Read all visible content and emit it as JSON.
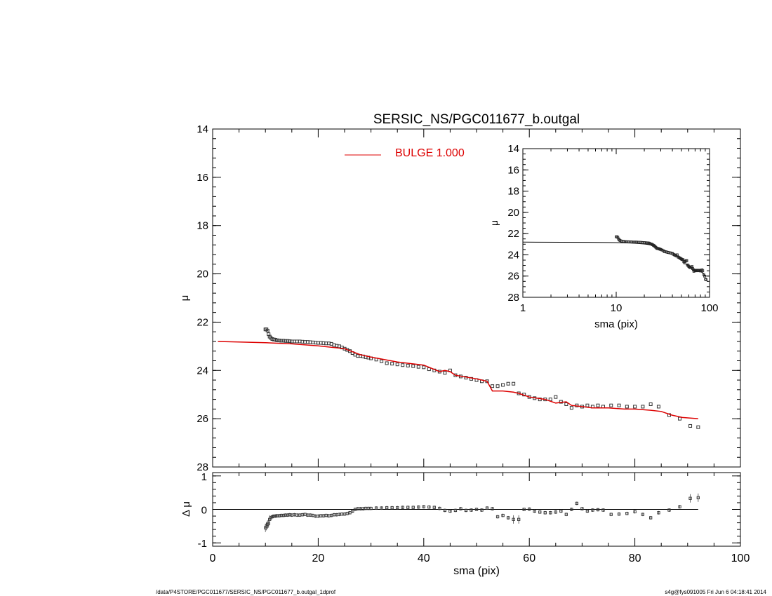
{
  "title": "SERSIC_NS/PGC011677_b.outgal",
  "footer": {
    "left": "/data/P4STORE/PGC011677/SERSIC_NS/PGC011677_b.outgal_1dprof",
    "right": "s4g@fys091005  Fri Jun  6 04:18:41 2014"
  },
  "colors": {
    "model": "#dd0000",
    "data": "#000000",
    "background": "#ffffff"
  },
  "chart_data": [
    {
      "type": "scatter",
      "panel": "main",
      "title": "SERSIC_NS/PGC011677_b.outgal",
      "xlabel": "",
      "ylabel": "μ",
      "xlim": [
        0,
        100
      ],
      "ylim": [
        28,
        14
      ],
      "y_inverted": true,
      "yticks": [
        "14",
        "16",
        "18",
        "20",
        "22",
        "24",
        "26",
        "28"
      ],
      "legend": {
        "placement": "top-center",
        "entries": [
          {
            "label": "BULGE  1.000",
            "color": "#dd0000"
          }
        ]
      },
      "model": {
        "name": "BULGE  1.000",
        "x": [
          1,
          5,
          10,
          15,
          20,
          25,
          28,
          30,
          35,
          40,
          43,
          44,
          45,
          46,
          50,
          52,
          53,
          55,
          57,
          58,
          60,
          63,
          65,
          67,
          68,
          70,
          72,
          75,
          78,
          80,
          83,
          85,
          87,
          89,
          92
        ],
        "y": [
          22.8,
          22.82,
          22.85,
          22.9,
          22.98,
          23.1,
          23.35,
          23.45,
          23.65,
          23.78,
          24.05,
          24.0,
          24.05,
          24.2,
          24.35,
          24.45,
          24.85,
          24.85,
          24.9,
          24.95,
          25.1,
          25.2,
          25.35,
          25.3,
          25.45,
          25.5,
          25.55,
          25.55,
          25.6,
          25.6,
          25.65,
          25.7,
          25.85,
          25.95,
          26.0
        ]
      },
      "points": {
        "x": [
          10,
          10.2,
          10.4,
          10.6,
          10.8,
          11,
          11.3,
          11.6,
          11.9,
          12.2,
          12.6,
          13,
          13.4,
          13.8,
          14.2,
          14.6,
          15,
          15.5,
          16,
          16.5,
          17,
          17.5,
          18,
          18.5,
          19,
          19.5,
          20,
          20.5,
          21,
          21.5,
          22,
          22.5,
          23,
          23.5,
          24,
          24.5,
          25,
          25.5,
          26,
          26.5,
          27,
          27.5,
          28,
          28.5,
          29,
          29.5,
          30,
          31,
          32,
          33,
          34,
          35,
          36,
          37,
          38,
          39,
          40,
          41,
          42,
          43,
          44,
          45,
          46,
          47,
          48,
          49,
          50,
          51,
          52,
          53,
          54,
          55,
          56,
          57,
          58,
          59,
          60,
          61,
          62,
          63,
          64,
          65,
          66,
          67,
          68,
          69,
          70,
          71,
          72,
          73,
          74,
          75.5,
          77,
          78.5,
          80,
          81.5,
          83,
          84.5,
          86.5,
          88.5,
          90.5,
          92
        ],
        "y": [
          22.3,
          22.3,
          22.35,
          22.5,
          22.6,
          22.65,
          22.7,
          22.72,
          22.73,
          22.75,
          22.76,
          22.77,
          22.77,
          22.78,
          22.78,
          22.79,
          22.8,
          22.8,
          22.8,
          22.8,
          22.81,
          22.82,
          22.82,
          22.83,
          22.84,
          22.85,
          22.86,
          22.86,
          22.87,
          22.88,
          22.88,
          22.9,
          22.95,
          22.98,
          23.0,
          23.05,
          23.1,
          23.15,
          23.2,
          23.28,
          23.35,
          23.4,
          23.4,
          23.42,
          23.45,
          23.47,
          23.5,
          23.55,
          23.62,
          23.7,
          23.72,
          23.75,
          23.78,
          23.8,
          23.82,
          23.85,
          23.87,
          23.95,
          24.0,
          24.05,
          24.1,
          24.0,
          24.2,
          24.25,
          24.3,
          24.35,
          24.4,
          24.45,
          24.45,
          24.65,
          24.65,
          24.6,
          24.55,
          24.55,
          24.95,
          25.0,
          25.1,
          25.15,
          25.2,
          25.2,
          25.2,
          25.1,
          25.3,
          25.4,
          25.55,
          25.45,
          25.5,
          25.45,
          25.5,
          25.45,
          25.5,
          25.45,
          25.45,
          25.5,
          25.5,
          25.5,
          25.4,
          25.5,
          25.85,
          26.0,
          26.3,
          26.35
        ]
      }
    },
    {
      "type": "scatter",
      "panel": "inset",
      "xlabel": "sma (pix)",
      "ylabel": "μ",
      "xscale": "log",
      "xlim": [
        1,
        100
      ],
      "xticks": [
        "1",
        "10",
        "100"
      ],
      "ylim": [
        28,
        14
      ],
      "y_inverted": true,
      "yticks": [
        "14",
        "16",
        "18",
        "20",
        "22",
        "24",
        "26",
        "28"
      ]
    },
    {
      "type": "scatter",
      "panel": "residual",
      "xlabel": "sma (pix)",
      "ylabel": "Δ μ",
      "xlim": [
        0,
        100
      ],
      "xticks": [
        "0",
        "20",
        "40",
        "60",
        "80",
        "100"
      ],
      "ylim": [
        -1.1,
        1.1
      ],
      "yticks": [
        "1",
        "0",
        "-1"
      ],
      "zero_line": {
        "x": [
          0,
          92
        ],
        "y": 0
      },
      "points": {
        "x": [
          10,
          10.2,
          10.4,
          10.6,
          10.8,
          11,
          11.3,
          11.6,
          11.9,
          12.2,
          12.6,
          13,
          13.4,
          13.8,
          14.2,
          14.6,
          15,
          15.5,
          16,
          16.5,
          17,
          17.5,
          18,
          18.5,
          19,
          19.5,
          20,
          20.5,
          21,
          21.5,
          22,
          22.5,
          23,
          23.5,
          24,
          24.5,
          25,
          25.5,
          26,
          26.5,
          27,
          27.5,
          28,
          28.5,
          29,
          29.5,
          30,
          31,
          32,
          33,
          34,
          35,
          36,
          37,
          38,
          39,
          40,
          41,
          42,
          43,
          44,
          45,
          46,
          47,
          48,
          49,
          50,
          51,
          52,
          53,
          54,
          55,
          56,
          57,
          58,
          59,
          60,
          61,
          62,
          63,
          64,
          65,
          66,
          67,
          68,
          69,
          70,
          71,
          72,
          73,
          74,
          75.5,
          77,
          78.5,
          80,
          81.5,
          83,
          84.5,
          86.5,
          88.5,
          90.5,
          92
        ],
        "y": [
          -0.55,
          -0.5,
          -0.45,
          -0.42,
          -0.3,
          -0.25,
          -0.22,
          -0.2,
          -0.2,
          -0.19,
          -0.19,
          -0.18,
          -0.18,
          -0.17,
          -0.17,
          -0.16,
          -0.17,
          -0.16,
          -0.17,
          -0.17,
          -0.16,
          -0.15,
          -0.17,
          -0.17,
          -0.18,
          -0.2,
          -0.2,
          -0.19,
          -0.19,
          -0.18,
          -0.19,
          -0.18,
          -0.16,
          -0.16,
          -0.15,
          -0.14,
          -0.14,
          -0.12,
          -0.1,
          -0.05,
          0,
          0.02,
          0.02,
          0.02,
          0.03,
          0.03,
          0.03,
          0.04,
          0.04,
          0.05,
          0.05,
          0.05,
          0.06,
          0.06,
          0.06,
          0.07,
          0.08,
          0.07,
          0.06,
          0.03,
          -0.03,
          -0.05,
          -0.03,
          0.02,
          -0.03,
          -0.02,
          0,
          -0.02,
          0.04,
          0.02,
          -0.22,
          -0.18,
          -0.25,
          -0.3,
          -0.3,
          0,
          0.01,
          -0.05,
          -0.08,
          -0.1,
          -0.1,
          -0.08,
          -0.05,
          -0.15,
          0,
          0.18,
          0.02,
          -0.05,
          -0.02,
          -0.01,
          -0.02,
          -0.15,
          -0.14,
          -0.12,
          -0.07,
          -0.15,
          -0.25,
          -0.1,
          -0.02,
          0.08,
          0.33,
          0.35
        ]
      }
    }
  ]
}
